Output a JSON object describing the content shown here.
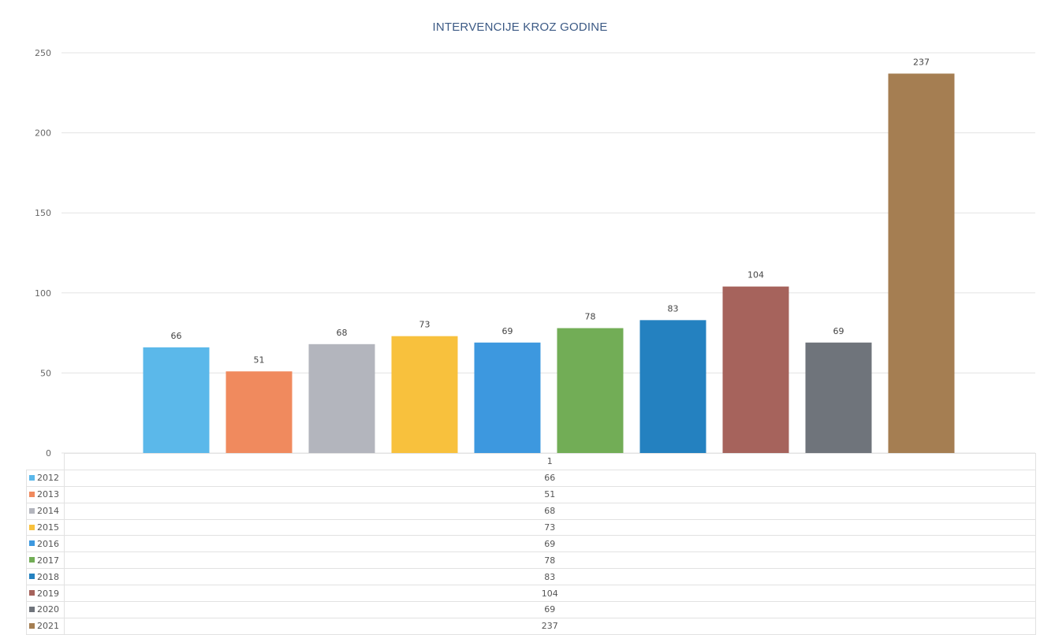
{
  "chart_data": {
    "type": "bar",
    "title": "INTERVENCIJE KROZ GODINE",
    "xlabel": "",
    "ylabel": "",
    "categories": [
      "1"
    ],
    "ylim": [
      0,
      250
    ],
    "yticks": [
      0,
      50,
      100,
      150,
      200,
      250
    ],
    "grid": true,
    "legend": "data-table",
    "series": [
      {
        "name": "2012",
        "values": [
          66
        ],
        "color": "#5bb8ea"
      },
      {
        "name": "2013",
        "values": [
          51
        ],
        "color": "#f08a5e"
      },
      {
        "name": "2014",
        "values": [
          68
        ],
        "color": "#b3b5bd"
      },
      {
        "name": "2015",
        "values": [
          73
        ],
        "color": "#f8c13d"
      },
      {
        "name": "2016",
        "values": [
          69
        ],
        "color": "#3d98df"
      },
      {
        "name": "2017",
        "values": [
          78
        ],
        "color": "#72ad56"
      },
      {
        "name": "2018",
        "values": [
          83
        ],
        "color": "#2481c0"
      },
      {
        "name": "2019",
        "values": [
          104
        ],
        "color": "#a6635c"
      },
      {
        "name": "2020",
        "values": [
          69
        ],
        "color": "#6f747b"
      },
      {
        "name": "2021",
        "values": [
          237
        ],
        "color": "#a57e52"
      }
    ]
  }
}
